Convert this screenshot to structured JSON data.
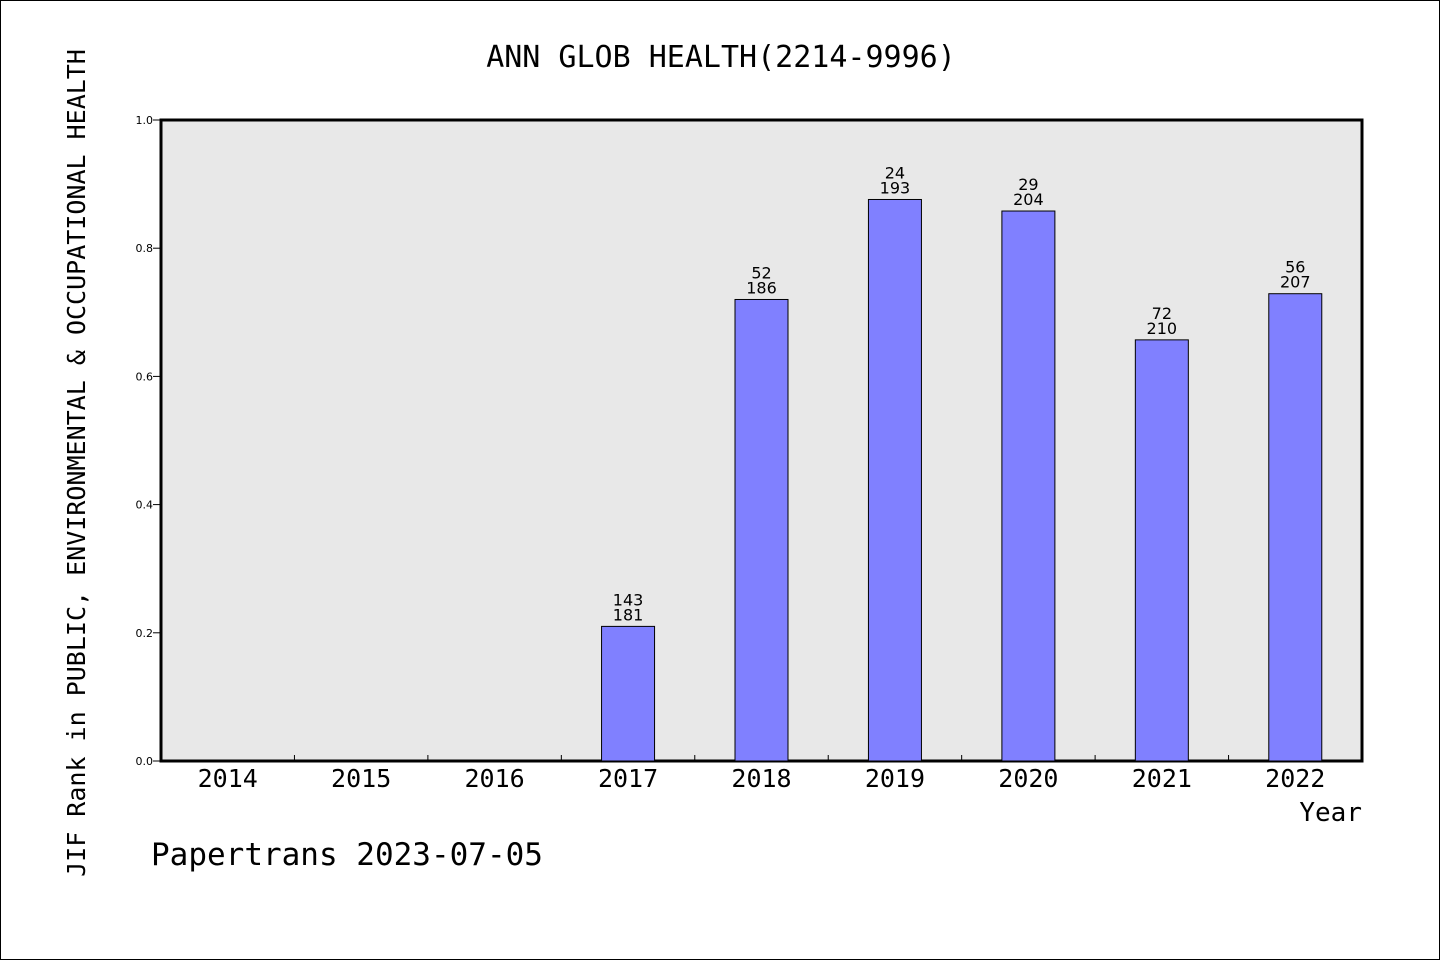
{
  "chart_data": {
    "type": "bar",
    "title": "ANN GLOB HEALTH(2214-9996)",
    "xlabel": "Year",
    "ylabel": "JIF Rank in PUBLIC, ENVIRONMENTAL & OCCUPATIONAL HEALTH",
    "footer": "Papertrans 2023-07-05",
    "categories": [
      "2014",
      "2015",
      "2016",
      "2017",
      "2018",
      "2019",
      "2020",
      "2021",
      "2022"
    ],
    "values": [
      null,
      null,
      null,
      0.21,
      0.72,
      0.876,
      0.858,
      0.657,
      0.729
    ],
    "rank_labels": [
      null,
      null,
      null,
      "143",
      "52",
      "24",
      "29",
      "72",
      "56"
    ],
    "total_labels": [
      null,
      null,
      null,
      "181",
      "186",
      "193",
      "204",
      "210",
      "207"
    ],
    "ylim": [
      0.0,
      1.0
    ],
    "yticks": [
      "0.0",
      "0.2",
      "0.4",
      "0.6",
      "0.8",
      "1.0"
    ],
    "grid": false,
    "colors": {
      "bar": "#8080ff",
      "plot_background": "#e8e8e8",
      "axis": "#000000"
    }
  }
}
